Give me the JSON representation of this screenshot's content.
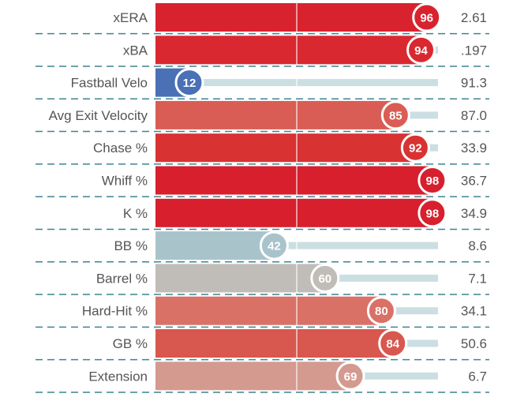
{
  "chart_data": {
    "type": "bar",
    "orientation": "horizontal",
    "title": "",
    "xlabel": "",
    "ylabel": "",
    "xlim": [
      0,
      100
    ],
    "categories": [
      "xERA",
      "xBA",
      "Fastball Velo",
      "Avg Exit Velocity",
      "Chase %",
      "Whiff %",
      "K %",
      "BB %",
      "Barrel %",
      "Hard-Hit %",
      "GB %",
      "Extension"
    ],
    "values": [
      96,
      94,
      12,
      85,
      92,
      98,
      98,
      42,
      60,
      80,
      84,
      69
    ],
    "value_labels": [
      "2.61",
      ".197",
      "91.3",
      "87.0",
      "33.9",
      "36.7",
      "34.9",
      "8.6",
      "7.1",
      "34.1",
      "50.6",
      "6.7"
    ],
    "bar_colors": [
      "#d8232f",
      "#d9282f",
      "#4a70b5",
      "#d95d55",
      "#d93232",
      "#d71f2d",
      "#d71f2d",
      "#a9c3cb",
      "#c0bcb8",
      "#da7166",
      "#d8574e",
      "#d49a90"
    ],
    "track_color": "#cbdfe2",
    "divider_color": "#3d8490",
    "gridline_marks": [
      50
    ],
    "grid": false,
    "legend": "none"
  }
}
